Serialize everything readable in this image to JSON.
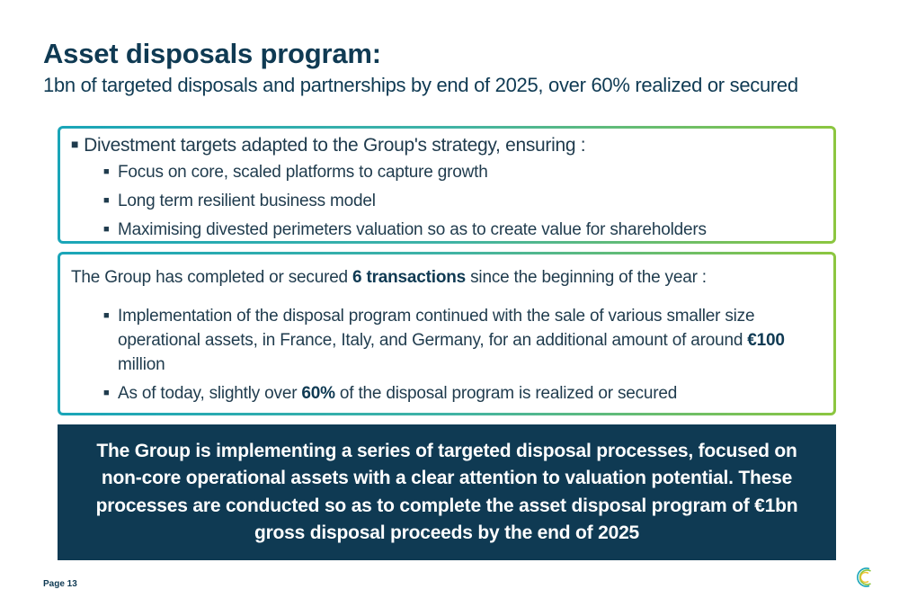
{
  "header": {
    "title": "Asset disposals program:",
    "subtitle": "1bn of targeted disposals and partnerships by end of 2025, over 60% realized or secured"
  },
  "box1": {
    "lead": "Divestment targets adapted to the Group's strategy, ensuring :",
    "items": [
      "Focus on core, scaled platforms to capture growth",
      "Long term resilient business model",
      "Maximising divested perimeters valuation so as to create value for shareholders"
    ]
  },
  "box2": {
    "lead_before": "The Group has completed or secured ",
    "lead_bold": "6 transactions",
    "lead_after": " since the beginning of the year :",
    "item1_before": "Implementation of the disposal program continued with the sale of various smaller size operational assets, in France, Italy, and Germany, for an additional amount of around ",
    "item1_bold": "€100",
    "item1_after": " million",
    "item2_before": "As of today, slightly over ",
    "item2_bold": "60%",
    "item2_after": " of the disposal program is realized or secured"
  },
  "banner": {
    "text": "The Group is implementing a series of targeted disposal processes, focused on non-core operational assets with a clear attention to valuation potential. These processes are conducted so as to complete the asset disposal program of €1bn gross disposal proceeds by the end of 2025"
  },
  "footer": {
    "page_label": "Page 13",
    "logo_icon": "c-logo-icon"
  },
  "colors": {
    "navy": "#0f3a53",
    "text": "#1f3b4d",
    "teal": "#1aa5b8",
    "green": "#8cc63f"
  }
}
